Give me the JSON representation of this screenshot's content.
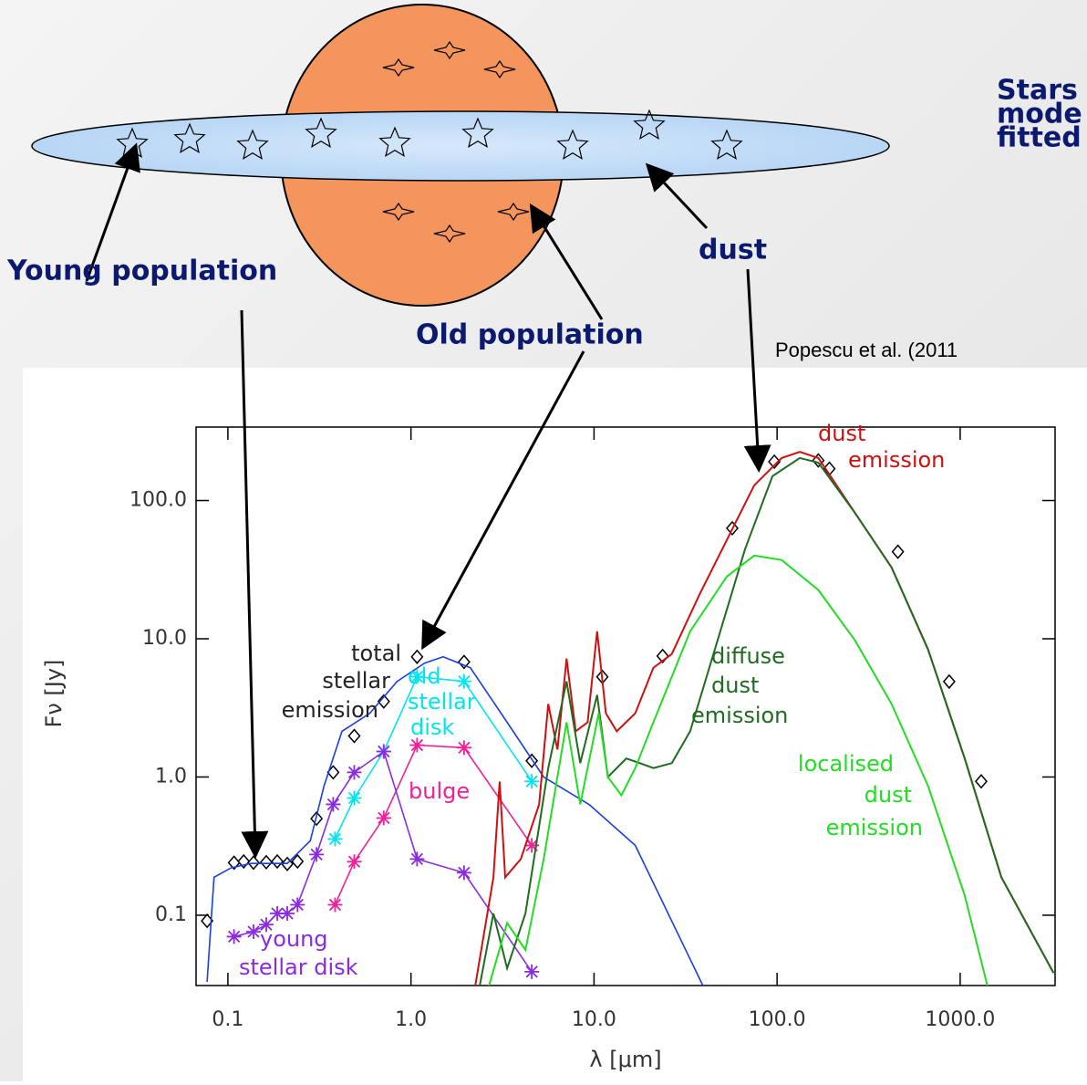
{
  "slide": {
    "heading": [
      "Stars",
      "mode",
      "fitted"
    ],
    "labels": {
      "young": "Young population",
      "old": "Old population",
      "dust": "dust"
    },
    "citation": "Popescu et al. (2011"
  },
  "chart_data": {
    "type": "line",
    "log_x": true,
    "log_y": true,
    "x_label": "λ [μm]",
    "y_label": "Fν [Jy]",
    "xlim": [
      0.067,
      3300
    ],
    "ylim": [
      0.031,
      340
    ],
    "xticks": [
      0.1,
      {
        "value": 1,
        "label": "1.0"
      },
      {
        "value": 10,
        "label": "10.0"
      },
      {
        "value": 100,
        "label": "100.0"
      },
      {
        "value": 1000,
        "label": "1000.0"
      }
    ],
    "yticks": [
      0.1,
      {
        "value": 1,
        "label": "1.0"
      },
      {
        "value": 10,
        "label": "10.0"
      },
      {
        "value": 100,
        "label": "100.0"
      }
    ],
    "series": [
      {
        "name": [
          "total",
          "stellar",
          "emission"
        ],
        "color": "#000000",
        "marker": "diamond",
        "line": false,
        "x": [
          0.077,
          0.108,
          0.122,
          0.138,
          0.162,
          0.186,
          0.211,
          0.24,
          0.305,
          0.376,
          0.49,
          0.71,
          1.08,
          1.95,
          4.57,
          11.1,
          23.7,
          56.9,
          96.6,
          168,
          193,
          457,
          871,
          1303
        ],
        "values": [
          0.091,
          0.24,
          0.245,
          0.24,
          0.242,
          0.245,
          0.235,
          0.245,
          0.5,
          1.08,
          1.98,
          3.52,
          7.4,
          6.8,
          1.31,
          5.3,
          7.5,
          63,
          191,
          195,
          170,
          42.6,
          4.9,
          0.93
        ]
      },
      {
        "color": "#1a3fe0",
        "marker": null,
        "line": true,
        "x": [
          0.077,
          0.084,
          0.104,
          0.133,
          0.211,
          0.282,
          0.335,
          0.42,
          0.596,
          0.84,
          1.19,
          1.5,
          2.11,
          3.35,
          5.31,
          9.44,
          16.8,
          39.8
        ],
        "values": [
          0.033,
          0.188,
          0.22,
          0.237,
          0.237,
          0.346,
          0.86,
          2.14,
          2.89,
          4.92,
          6.67,
          7.41,
          6.17,
          2.49,
          1.0,
          0.63,
          0.32,
          0.03
        ]
      },
      {
        "name": [
          "old",
          "stellar",
          "disk"
        ],
        "color": "#00e5f0",
        "marker": "star",
        "line": true,
        "x": [
          0.385,
          0.49,
          0.71,
          1.08,
          1.95,
          4.57
        ],
        "values": [
          0.356,
          0.705,
          1.53,
          5.31,
          4.92,
          0.93
        ]
      },
      {
        "name": [
          "bulge"
        ],
        "color": "#f0209a",
        "marker": "star",
        "line": true,
        "x": [
          0.385,
          0.49,
          0.71,
          1.08,
          1.95,
          4.57
        ],
        "values": [
          0.119,
          0.244,
          0.505,
          1.7,
          1.63,
          0.32
        ]
      },
      {
        "name": [
          "young",
          "stellar disk"
        ],
        "color": "#8a2be2",
        "marker": "star",
        "line": true,
        "x": [
          0.108,
          0.138,
          0.162,
          0.186,
          0.211,
          0.24,
          0.305,
          0.376,
          0.49,
          0.71,
          1.08,
          1.95,
          4.57
        ],
        "values": [
          0.07,
          0.076,
          0.0855,
          0.103,
          0.103,
          0.119,
          0.275,
          0.634,
          1.08,
          1.53,
          0.255,
          0.203,
          0.039
        ]
      },
      {
        "name": [
          "dust",
          "emission"
        ],
        "color": "#d01010",
        "marker": null,
        "line": true,
        "x": [
          2.24,
          2.82,
          3.05,
          3.27,
          3.98,
          5.01,
          5.62,
          6.31,
          7.08,
          7.94,
          9.23,
          10.4,
          11.6,
          13.3,
          16.8,
          21.1,
          26.6,
          37.6,
          53.1,
          75,
          106,
          133,
          168,
          266,
          422,
          668,
          1059,
          1679,
          3236
        ],
        "values": [
          0.0305,
          0.188,
          0.927,
          0.188,
          0.255,
          0.634,
          3.37,
          1.58,
          7.19,
          2.14,
          2.49,
          11.3,
          2.89,
          2.14,
          2.89,
          6.18,
          7.76,
          20.8,
          51.8,
          129,
          203,
          225,
          203,
          81.6,
          32.8,
          8.37,
          1.36,
          0.188,
          0.0383
        ]
      },
      {
        "name": [
          "diffuse",
          "dust",
          "emission"
        ],
        "color": "#1f6b1f",
        "marker": null,
        "line": true,
        "x": [
          2.37,
          2.82,
          3.35,
          4.22,
          5.62,
          7.08,
          8.41,
          10.4,
          11.9,
          15.0,
          17.8,
          21.1,
          26.6,
          33.5,
          47.3,
          66.8,
          94.4,
          133,
          168,
          266,
          422,
          668,
          1059,
          1679,
          3236
        ],
        "values": [
          0.0305,
          0.103,
          0.0413,
          0.103,
          1.16,
          4.92,
          1.26,
          3.92,
          1.0,
          1.36,
          1.26,
          1.16,
          1.26,
          2.14,
          9.75,
          44.5,
          150,
          203,
          188,
          81.6,
          32.8,
          8.37,
          1.36,
          0.188,
          0.0383
        ]
      },
      {
        "name": [
          "localised",
          "dust",
          "emission"
        ],
        "color": "#22dd22",
        "marker": null,
        "line": true,
        "x": [
          2.66,
          3.35,
          4.22,
          5.31,
          7.08,
          8.41,
          10.6,
          11.9,
          14.1,
          16.8,
          21.1,
          33.5,
          53.1,
          75,
          106,
          168,
          266,
          422,
          668,
          1059,
          1413
        ],
        "values": [
          0.0305,
          0.088,
          0.056,
          0.255,
          2.49,
          0.634,
          2.89,
          1.0,
          0.738,
          1.16,
          2.49,
          11.3,
          28.2,
          40.0,
          37.1,
          22.5,
          9.75,
          3.37,
          0.86,
          0.139,
          0.0305
        ]
      }
    ]
  }
}
